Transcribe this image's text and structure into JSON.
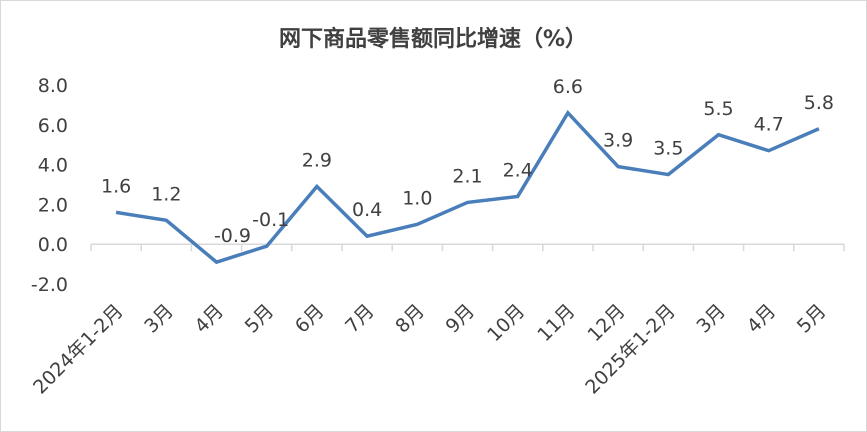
{
  "chart_data": {
    "type": "line",
    "title": "网下商品零售额同比增速（%）",
    "xlabel": "",
    "ylabel": "",
    "categories": [
      "2024年1-2月",
      "3月",
      "4月",
      "5月",
      "6月",
      "7月",
      "8月",
      "9月",
      "10月",
      "11月",
      "12月",
      "2025年1-2月",
      "3月",
      "4月",
      "5月"
    ],
    "series": [
      {
        "name": "网下商品零售额同比增速",
        "values": [
          1.6,
          1.2,
          -0.9,
          -0.1,
          2.9,
          0.4,
          1.0,
          2.1,
          2.4,
          6.6,
          3.9,
          3.5,
          5.5,
          4.7,
          5.8
        ],
        "color": "#4a7ebb"
      }
    ],
    "data_labels": [
      "1.6",
      "1.2",
      "-0.9",
      "-0.1",
      "2.9",
      "0.4",
      "1.0",
      "2.1",
      "2.4",
      "6.6",
      "3.9",
      "3.5",
      "5.5",
      "4.7",
      "5.8"
    ],
    "ylim": [
      -2.0,
      8.0
    ],
    "yticks": [
      "-2.0",
      "0.0",
      "2.0",
      "4.0",
      "6.0",
      "8.0"
    ],
    "grid": false,
    "legend": "none"
  }
}
